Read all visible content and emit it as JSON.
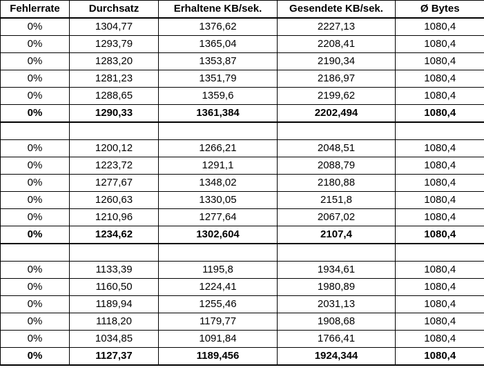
{
  "headers": [
    "Fehlerrate",
    "Durchsatz",
    "Erhaltene KB/sek.",
    "Gesendete KB/sek.",
    "Ø Bytes"
  ],
  "groups": [
    {
      "rows": [
        [
          "0%",
          "1304,77",
          "1376,62",
          "2227,13",
          "1080,4"
        ],
        [
          "0%",
          "1293,79",
          "1365,04",
          "2208,41",
          "1080,4"
        ],
        [
          "0%",
          "1283,20",
          "1353,87",
          "2190,34",
          "1080,4"
        ],
        [
          "0%",
          "1281,23",
          "1351,79",
          "2186,97",
          "1080,4"
        ],
        [
          "0%",
          "1288,65",
          "1359,6",
          "2199,62",
          "1080,4"
        ]
      ],
      "summary": [
        "0%",
        "1290,33",
        "1361,384",
        "2202,494",
        "1080,4"
      ]
    },
    {
      "rows": [
        [
          "0%",
          "1200,12",
          "1266,21",
          "2048,51",
          "1080,4"
        ],
        [
          "0%",
          "1223,72",
          "1291,1",
          "2088,79",
          "1080,4"
        ],
        [
          "0%",
          "1277,67",
          "1348,02",
          "2180,88",
          "1080,4"
        ],
        [
          "0%",
          "1260,63",
          "1330,05",
          "2151,8",
          "1080,4"
        ],
        [
          "0%",
          "1210,96",
          "1277,64",
          "2067,02",
          "1080,4"
        ]
      ],
      "summary": [
        "0%",
        "1234,62",
        "1302,604",
        "2107,4",
        "1080,4"
      ]
    },
    {
      "rows": [
        [
          "0%",
          "1133,39",
          "1195,8",
          "1934,61",
          "1080,4"
        ],
        [
          "0%",
          "1160,50",
          "1224,41",
          "1980,89",
          "1080,4"
        ],
        [
          "0%",
          "1189,94",
          "1255,46",
          "2031,13",
          "1080,4"
        ],
        [
          "0%",
          "1118,20",
          "1179,77",
          "1908,68",
          "1080,4"
        ],
        [
          "0%",
          "1034,85",
          "1091,84",
          "1766,41",
          "1080,4"
        ]
      ],
      "summary": [
        "0%",
        "1127,37",
        "1189,456",
        "1924,344",
        "1080,4"
      ]
    }
  ]
}
